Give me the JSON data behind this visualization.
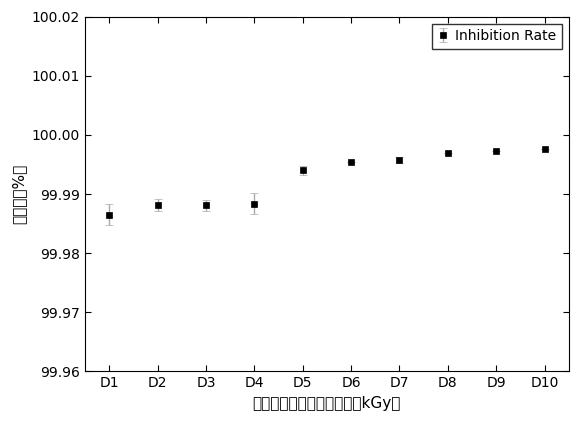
{
  "categories": [
    "D1",
    "D2",
    "D3",
    "D4",
    "D5",
    "D6",
    "D7",
    "D8",
    "D9",
    "D10"
  ],
  "values": [
    99.9865,
    99.9882,
    99.9881,
    99.9884,
    99.994,
    99.9955,
    99.9957,
    99.997,
    99.9973,
    99.9977
  ],
  "yerr": [
    0.0018,
    0.001,
    0.0009,
    0.0018,
    0.0007,
    0.0,
    0.0005,
    0.0,
    0.0,
    0.0
  ],
  "ylim": [
    99.96,
    100.02
  ],
  "yticks": [
    99.96,
    99.97,
    99.98,
    99.99,
    100.0,
    100.01,
    100.02
  ],
  "ylabel": "抑制率（%）",
  "xlabel": "电子束辐照消毒吸收剂量（kGy）",
  "legend_label": "Inhibition Rate",
  "marker": "s",
  "marker_color": "black",
  "marker_size": 5,
  "ecolor": "#aaaaaa",
  "capsize": 3,
  "background_color": "#ffffff",
  "label_fontsize": 11,
  "tick_fontsize": 10
}
